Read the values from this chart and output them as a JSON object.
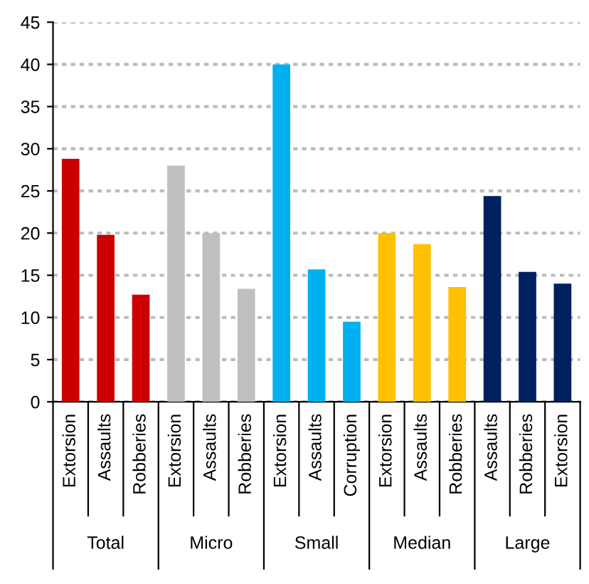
{
  "chart_data": {
    "type": "bar",
    "categories": [
      "Extorsion",
      "Assaults",
      "Robberies",
      "Extorsion",
      "Assaults",
      "Robberies",
      "Extorsion",
      "Assaults",
      "Corruption",
      "Extorsion",
      "Assaults",
      "Robberies",
      "Assaults",
      "Robberies",
      "Extorsion"
    ],
    "series": [
      {
        "name": "Total",
        "color": "#cc0000",
        "values": [
          28.8,
          19.8,
          12.7,
          null,
          null,
          null,
          null,
          null,
          null,
          null,
          null,
          null,
          null,
          null,
          null
        ]
      },
      {
        "name": "Micro",
        "color": "#bfbfbf",
        "values": [
          null,
          null,
          null,
          28.0,
          20.0,
          13.4,
          null,
          null,
          null,
          null,
          null,
          null,
          null,
          null,
          null
        ]
      },
      {
        "name": "Small",
        "color": "#00b0f0",
        "values": [
          null,
          null,
          null,
          null,
          null,
          null,
          40.0,
          15.7,
          9.5,
          null,
          null,
          null,
          null,
          null,
          null
        ]
      },
      {
        "name": "Median",
        "color": "#ffc000",
        "values": [
          null,
          null,
          null,
          null,
          null,
          null,
          null,
          null,
          null,
          20.0,
          18.7,
          13.6,
          null,
          null,
          null
        ]
      },
      {
        "name": "Large",
        "color": "#002060",
        "values": [
          null,
          null,
          null,
          null,
          null,
          null,
          null,
          null,
          null,
          null,
          null,
          null,
          24.4,
          15.4,
          14.0
        ]
      }
    ],
    "ylim": [
      0,
      45
    ],
    "yticks": [
      0,
      5,
      10,
      15,
      20,
      25,
      30,
      35,
      40,
      45
    ],
    "grid": "y"
  }
}
